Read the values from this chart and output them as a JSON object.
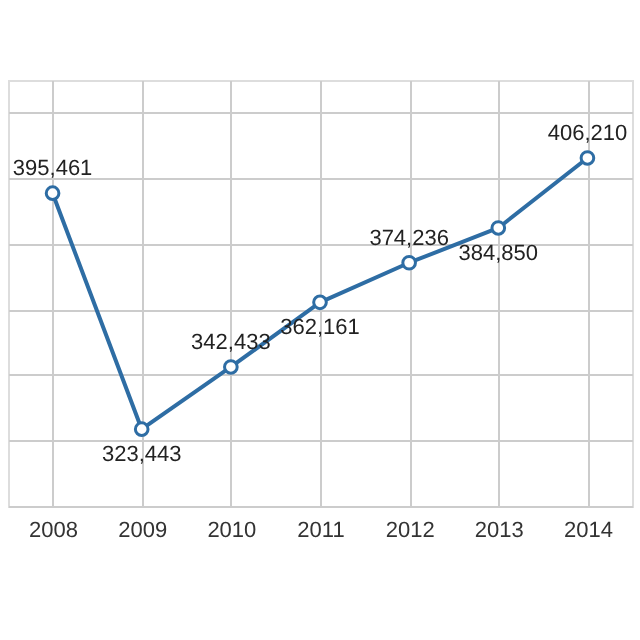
{
  "chart_data": {
    "type": "line",
    "categories": [
      "2008",
      "2009",
      "2010",
      "2011",
      "2012",
      "2013",
      "2014"
    ],
    "series": [
      {
        "color": "#2e6da4",
        "values": [
          395461,
          323443,
          342433,
          362161,
          374236,
          384850,
          406210
        ],
        "value_labels": [
          "395,461",
          "323,443",
          "342,433",
          "362,161",
          "374,236",
          "384,850",
          "406,210"
        ]
      }
    ],
    "tick_labels": "x",
    "grid": true,
    "marker": "circle",
    "line_style": "solid"
  }
}
